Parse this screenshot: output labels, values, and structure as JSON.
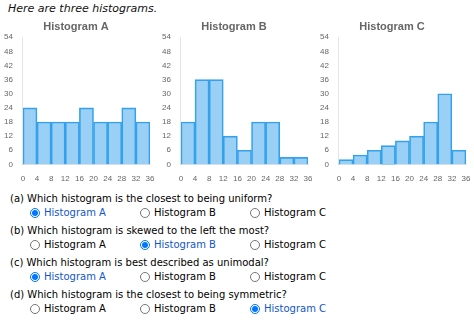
{
  "title": "Here are three histograms.",
  "chart_data": [
    {
      "type": "histogram",
      "title": "Histogram A",
      "bins": [
        0,
        4,
        8,
        12,
        16,
        20,
        24,
        28,
        32,
        36
      ],
      "values": [
        24,
        18,
        18,
        18,
        24,
        18,
        18,
        24,
        18
      ],
      "xlim": [
        0,
        36
      ],
      "xticks": [
        0,
        4,
        8,
        12,
        16,
        20,
        24,
        28,
        32,
        36
      ],
      "ylim": [
        0,
        54
      ],
      "yticks": [
        0,
        6,
        12,
        18,
        24,
        30,
        36,
        42,
        48,
        54
      ],
      "grid": false
    },
    {
      "type": "histogram",
      "title": "Histogram B",
      "bins": [
        0,
        4,
        8,
        12,
        16,
        20,
        24,
        28,
        32,
        36
      ],
      "values": [
        18,
        36,
        36,
        12,
        6,
        18,
        18,
        3,
        3
      ],
      "xlim": [
        0,
        36
      ],
      "xticks": [
        0,
        4,
        8,
        12,
        16,
        20,
        24,
        28,
        32,
        36
      ],
      "ylim": [
        0,
        54
      ],
      "yticks": [
        0,
        6,
        12,
        18,
        24,
        30,
        36,
        42,
        48,
        54
      ],
      "grid": false
    },
    {
      "type": "histogram",
      "title": "Histogram C",
      "bins": [
        0,
        4,
        8,
        12,
        16,
        20,
        24,
        28,
        32,
        36
      ],
      "values": [
        2,
        4,
        6,
        8,
        10,
        12,
        18,
        30,
        6
      ],
      "xlim": [
        0,
        36
      ],
      "xticks": [
        0,
        4,
        8,
        12,
        16,
        20,
        24,
        28,
        32,
        36
      ],
      "ylim": [
        0,
        54
      ],
      "yticks": [
        0,
        6,
        12,
        18,
        24,
        30,
        36,
        42,
        48,
        54
      ],
      "grid": false
    }
  ],
  "annotations": [
    {
      "text": "(a) Which histogram is the closest to being uniform?",
      "choices": [
        "Histogram A",
        "Histogram B",
        "Histogram C"
      ],
      "answer": 0
    },
    {
      "text": "(b) Which histogram is skewed to the left the most?",
      "choices": [
        "Histogram A",
        "Histogram B",
        "Histogram C"
      ],
      "answer": 1
    },
    {
      "text": "(c) Which histogram is best described as unimodal?",
      "choices": [
        "Histogram A",
        "Histogram B",
        "Histogram C"
      ],
      "answer": 0
    },
    {
      "text": "(d) Which histogram is the closest to being symmetric?",
      "choices": [
        "Histogram A",
        "Histogram B",
        "Histogram C"
      ],
      "answer": 2
    }
  ]
}
